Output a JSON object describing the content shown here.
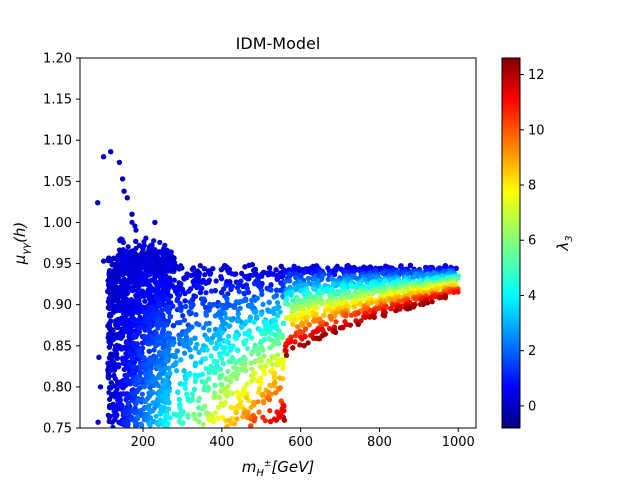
{
  "chart_data": {
    "type": "scatter",
    "title": "IDM-Model",
    "xlabel_base": "m",
    "xlabel_sub": "H",
    "xlabel_sup": "±",
    "xlabel_unit": "[GeV]",
    "ylabel_base": "μ",
    "ylabel_sub": "γγ",
    "ylabel_arg": "(h)",
    "xlim": [
      40,
      1045
    ],
    "ylim": [
      0.75,
      1.2
    ],
    "xticks": [
      200,
      400,
      600,
      800,
      1000
    ],
    "xtick_labels": [
      "200",
      "400",
      "600",
      "800",
      "1000"
    ],
    "yticks": [
      0.75,
      0.8,
      0.85,
      0.9,
      0.95,
      1.0,
      1.05,
      1.1,
      1.15,
      1.2
    ],
    "ytick_labels": [
      "0.75",
      "0.80",
      "0.85",
      "0.90",
      "0.95",
      "1.00",
      "1.05",
      "1.10",
      "1.15",
      "1.20"
    ],
    "grid": false,
    "colorbar": {
      "label_base": "λ",
      "label_sub": "3",
      "colormap": "jet",
      "range": [
        -0.8,
        12.6
      ],
      "ticks": [
        0,
        2,
        4,
        6,
        8,
        10,
        12
      ],
      "tick_labels": [
        "0",
        "2",
        "4",
        "6",
        "8",
        "10",
        "12"
      ]
    },
    "outlier_points": [
      {
        "x": 85,
        "y": 1.024,
        "c": 0.0
      },
      {
        "x": 100,
        "y": 1.08,
        "c": 0.0
      },
      {
        "x": 118,
        "y": 1.086,
        "c": 0.0
      },
      {
        "x": 140,
        "y": 1.073,
        "c": 0.0
      },
      {
        "x": 148,
        "y": 1.053,
        "c": 0.0
      },
      {
        "x": 152,
        "y": 1.038,
        "c": 0.0
      },
      {
        "x": 160,
        "y": 1.03,
        "c": 0.0
      },
      {
        "x": 172,
        "y": 1.01,
        "c": 0.0
      },
      {
        "x": 230,
        "y": 1.0,
        "c": 0.0
      },
      {
        "x": 100,
        "y": 0.953,
        "c": 0.2
      },
      {
        "x": 88,
        "y": 0.836,
        "c": 0.3
      },
      {
        "x": 92,
        "y": 0.8,
        "c": 0.3
      },
      {
        "x": 86,
        "y": 0.757,
        "c": 0.3
      }
    ],
    "upper_envelope": [
      [
        110,
        0.955
      ],
      [
        200,
        0.965
      ],
      [
        300,
        0.948
      ],
      [
        400,
        0.948
      ],
      [
        600,
        0.947
      ],
      [
        800,
        0.946
      ],
      [
        1000,
        0.945
      ]
    ],
    "lower_boundary_by_lambda": [
      {
        "lambda": 12.5,
        "points": [
          [
            560,
            0.835
          ],
          [
            650,
            0.86
          ],
          [
            800,
            0.89
          ],
          [
            1000,
            0.912
          ]
        ]
      },
      {
        "lambda": 10,
        "points": [
          [
            450,
            0.828
          ],
          [
            600,
            0.862
          ],
          [
            800,
            0.895
          ],
          [
            1000,
            0.918
          ]
        ]
      },
      {
        "lambda": 6,
        "points": [
          [
            340,
            0.81
          ],
          [
            500,
            0.855
          ],
          [
            700,
            0.9
          ],
          [
            1000,
            0.93
          ]
        ]
      },
      {
        "lambda": 3,
        "points": [
          [
            220,
            0.765
          ],
          [
            400,
            0.84
          ],
          [
            700,
            0.905
          ],
          [
            1000,
            0.937
          ]
        ]
      },
      {
        "lambda": 0,
        "points": [
          [
            120,
            0.75
          ],
          [
            300,
            0.88
          ],
          [
            600,
            0.935
          ],
          [
            1000,
            0.945
          ]
        ]
      }
    ]
  }
}
